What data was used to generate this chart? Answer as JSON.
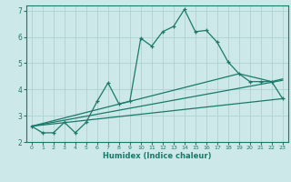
{
  "xlabel": "Humidex (Indice chaleur)",
  "xlim": [
    -0.5,
    23.5
  ],
  "ylim": [
    2,
    7.2
  ],
  "xticks": [
    0,
    1,
    2,
    3,
    4,
    5,
    6,
    7,
    8,
    9,
    10,
    11,
    12,
    13,
    14,
    15,
    16,
    17,
    18,
    19,
    20,
    21,
    22,
    23
  ],
  "yticks": [
    2,
    3,
    4,
    5,
    6,
    7
  ],
  "bg_color": "#cce8e8",
  "line_color": "#1a7a6a",
  "grid_color": "#a8cece",
  "main_line_x": [
    0,
    1,
    2,
    3,
    4,
    5,
    6,
    7,
    8,
    9,
    10,
    11,
    12,
    13,
    14,
    15,
    16,
    17,
    18,
    19,
    20,
    21,
    22,
    23
  ],
  "main_line_y": [
    2.6,
    2.35,
    2.35,
    2.75,
    2.35,
    2.75,
    3.55,
    4.25,
    3.45,
    3.55,
    5.95,
    5.65,
    6.2,
    6.4,
    7.05,
    6.2,
    6.25,
    5.8,
    5.05,
    4.6,
    4.3,
    4.3,
    4.3,
    3.65
  ],
  "ref_line1_x": [
    0,
    23
  ],
  "ref_line1_y": [
    2.6,
    3.65
  ],
  "ref_line2_x": [
    0,
    23
  ],
  "ref_line2_y": [
    2.6,
    4.35
  ],
  "ref_line3_x": [
    0,
    19,
    22,
    23
  ],
  "ref_line3_y": [
    2.6,
    4.6,
    4.3,
    4.4
  ]
}
